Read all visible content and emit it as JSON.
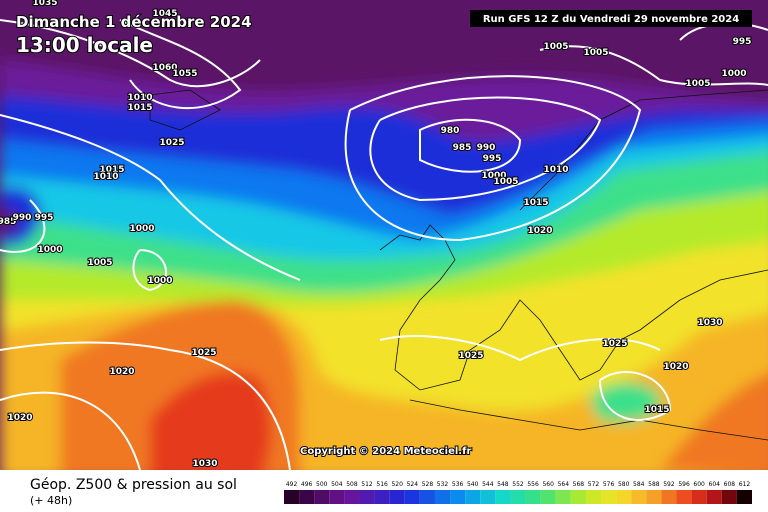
{
  "header": {
    "date": "Dimanche 1 décembre 2024",
    "time": "13:00 locale",
    "run": "Run GFS 12 Z du Vendredi 29 novembre 2024"
  },
  "map": {
    "copyright": "Copyright © 2024 Meteociel.fr",
    "isobar_labels": [
      "1035",
      "1045",
      "1060",
      "1055",
      "1010",
      "1015",
      "1025",
      "1015",
      "1010",
      "985",
      "990",
      "995",
      "1000",
      "1005",
      "1000",
      "1000",
      "980",
      "985",
      "990",
      "995",
      "1000",
      "1005",
      "1010",
      "1015",
      "1020",
      "1005",
      "1005",
      "995",
      "1000",
      "1005",
      "1025",
      "1020",
      "1020",
      "1030",
      "1025",
      "1025",
      "1030",
      "1020",
      "1015"
    ]
  },
  "footer": {
    "title": "Géop. Z500 & pression au sol",
    "subtitle": "(+ 48h)"
  },
  "legend": {
    "ticks": [
      492,
      496,
      500,
      504,
      508,
      512,
      516,
      520,
      524,
      528,
      532,
      536,
      540,
      544,
      548,
      552,
      556,
      560,
      564,
      568,
      572,
      576,
      580,
      584,
      588,
      592,
      596,
      600,
      604,
      608,
      612
    ]
  }
}
